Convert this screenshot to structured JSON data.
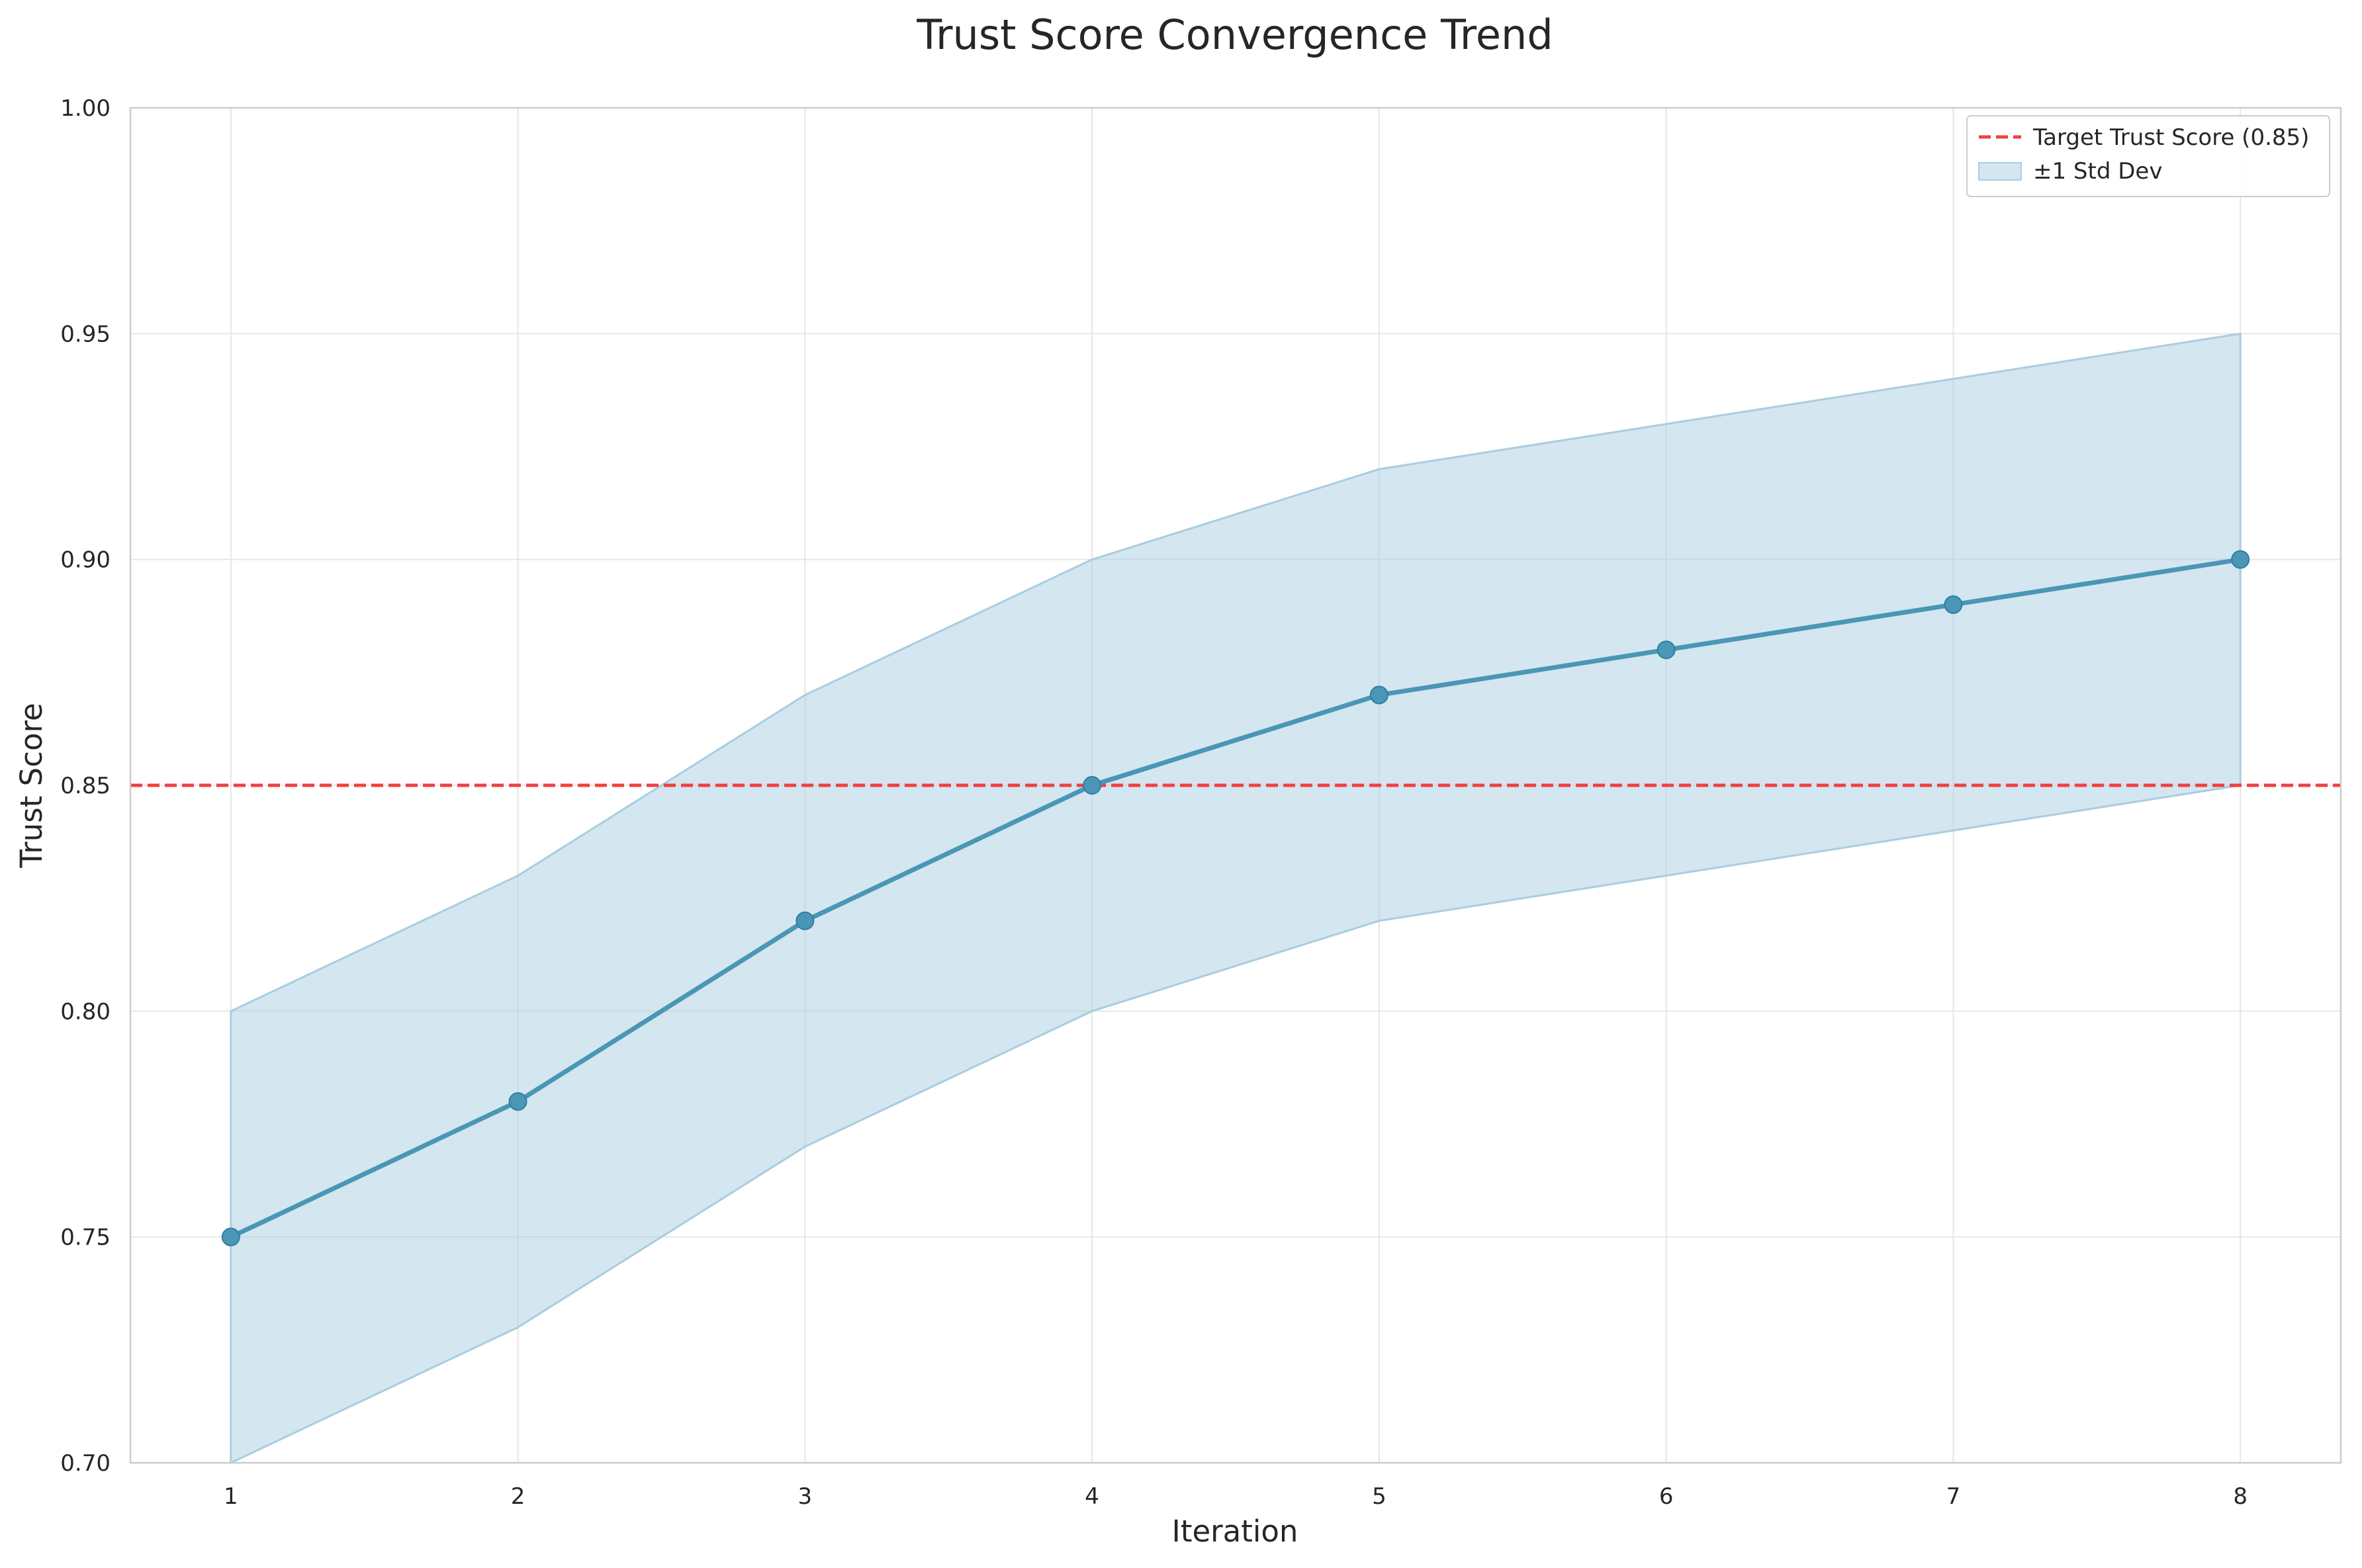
{
  "chart_data": {
    "type": "line",
    "title": "Trust Score Convergence Trend",
    "xlabel": "Iteration",
    "ylabel": "Trust Score",
    "x": [
      1,
      2,
      3,
      4,
      5,
      6,
      7,
      8
    ],
    "xlim": [
      0.65,
      8.35
    ],
    "ylim": [
      0.7,
      1.0
    ],
    "x_ticks": [
      "1",
      "2",
      "3",
      "4",
      "5",
      "6",
      "7",
      "8"
    ],
    "y_ticks": [
      "0.70",
      "0.75",
      "0.80",
      "0.85",
      "0.90",
      "0.95",
      "1.00"
    ],
    "series": [
      {
        "values": [
          0.75,
          0.78,
          0.82,
          0.85,
          0.87,
          0.88,
          0.89,
          0.9
        ],
        "color": "#4a96b6"
      }
    ],
    "band": {
      "name": "±1 Std Dev",
      "upper": [
        0.8,
        0.83,
        0.87,
        0.9,
        0.92,
        0.93,
        0.94,
        0.95
      ],
      "lower": [
        0.7,
        0.73,
        0.77,
        0.8,
        0.82,
        0.83,
        0.84,
        0.85
      ],
      "color": "#a9cde0"
    },
    "reference_line": {
      "name": "Target Trust Score (0.85)",
      "y": 0.85,
      "color": "#f04040",
      "style": "dashed"
    },
    "grid": true,
    "legend_position": "top-right"
  }
}
